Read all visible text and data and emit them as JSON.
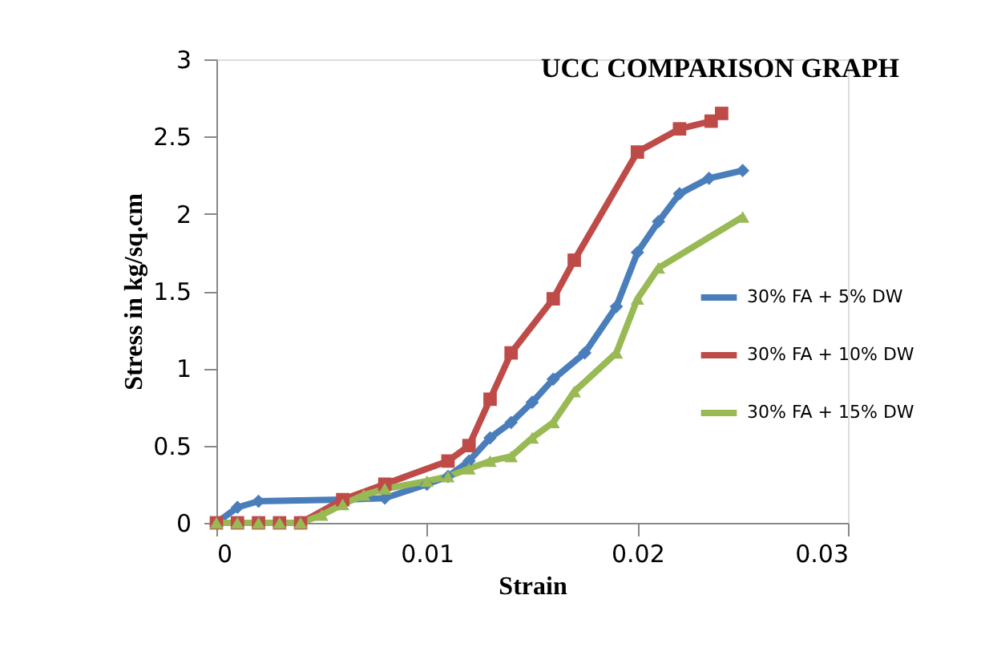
{
  "chart_data": {
    "type": "line",
    "title": "UCC COMPARISON GRAPH",
    "xlabel": "Strain",
    "ylabel": "Stress in kg/sq.cm",
    "xlim": [
      0,
      0.03
    ],
    "xticks": [
      {
        "value": 0,
        "label": "0"
      },
      {
        "value": 0.01,
        "label": "0.01"
      },
      {
        "value": 0.02,
        "label": "0.02"
      },
      {
        "value": 0.03,
        "label": "0.03"
      }
    ],
    "ylim": [
      0,
      3
    ],
    "yticks": [
      {
        "value": 0,
        "label": "0"
      },
      0.5,
      {
        "value": 1,
        "label": "1"
      },
      1.5,
      {
        "value": 2,
        "label": "2"
      },
      2.5,
      {
        "value": 3,
        "label": "3"
      }
    ],
    "grid": false,
    "legend": "right",
    "line_style": "solid",
    "series": [
      {
        "name": "30% FA + 5% DW",
        "color": "#4a7ebb",
        "marker": "diamond",
        "x": [
          0,
          0.001,
          0.002,
          0.006,
          0.008,
          0.01,
          0.011,
          0.012,
          0.013,
          0.014,
          0.015,
          0.016,
          0.0175,
          0.019,
          0.02,
          0.021,
          0.022,
          0.0234,
          0.025
        ],
        "values": [
          0,
          0.1,
          0.14,
          0.15,
          0.16,
          0.25,
          0.3,
          0.4,
          0.55,
          0.65,
          0.78,
          0.93,
          1.1,
          1.4,
          1.75,
          1.95,
          2.13,
          2.23,
          2.28
        ]
      },
      {
        "name": "30% FA + 10% DW",
        "color": "#be4b48",
        "marker": "square",
        "x": [
          0,
          0.001,
          0.002,
          0.003,
          0.004,
          0.006,
          0.008,
          0.011,
          0.012,
          0.013,
          0.014,
          0.016,
          0.017,
          0.02,
          0.022,
          0.0235,
          0.024
        ],
        "values": [
          0,
          0,
          0,
          0,
          0,
          0.15,
          0.25,
          0.4,
          0.5,
          0.8,
          1.1,
          1.45,
          1.7,
          2.4,
          2.55,
          2.6,
          2.65
        ]
      },
      {
        "name": "30% FA + 15% DW",
        "color": "#98b954",
        "marker": "triangle",
        "x": [
          0,
          0.001,
          0.002,
          0.003,
          0.004,
          0.005,
          0.006,
          0.007,
          0.008,
          0.01,
          0.011,
          0.012,
          0.013,
          0.014,
          0.015,
          0.016,
          0.017,
          0.019,
          0.02,
          0.021,
          0.025
        ],
        "values": [
          0,
          0,
          0,
          0,
          0,
          0.05,
          0.12,
          0.18,
          0.22,
          0.27,
          0.3,
          0.35,
          0.4,
          0.43,
          0.55,
          0.65,
          0.85,
          1.1,
          1.45,
          1.65,
          1.98
        ]
      }
    ]
  }
}
